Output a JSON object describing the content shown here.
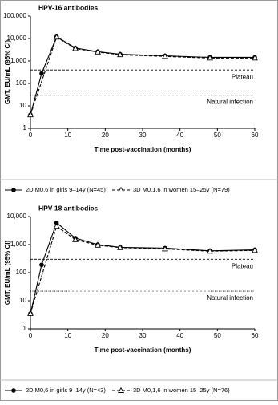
{
  "chart_data": [
    {
      "type": "line",
      "title": "HPV-16 antibodies",
      "x_label": "Time post-vaccination (months)",
      "y_label": "GMT, EU/mL (95% CI)",
      "log_scale": true,
      "xlim": [
        0,
        60
      ],
      "xticks": [
        0,
        10,
        20,
        30,
        40,
        50,
        60
      ],
      "ylim": [
        1,
        100000
      ],
      "yticks": [
        1,
        10,
        100,
        {
          "value": 1000,
          "label": "1,000"
        },
        {
          "value": 10000,
          "label": "10,000"
        },
        {
          "value": 100000,
          "label": "100,000"
        }
      ],
      "series": [
        {
          "name": "2D M0,6 in girls 9–14y (N=45)",
          "color": "#000000",
          "marker": "circle",
          "line": "solid",
          "x": [
            0,
            3,
            7,
            12,
            18,
            24,
            36,
            48,
            60
          ],
          "values": [
            4,
            280,
            12000,
            3800,
            2600,
            2000,
            1700,
            1450,
            1450
          ]
        },
        {
          "name": "3D M0,1,6 in women 15–25y (N=79)",
          "color": "#000000",
          "marker": "triangle",
          "line": "dashed",
          "x": [
            0,
            7,
            12,
            18,
            24,
            36,
            48,
            60
          ],
          "values": [
            4,
            11500,
            3600,
            2500,
            1900,
            1600,
            1350,
            1350
          ]
        }
      ],
      "reference_lines": [
        {
          "label": "Plateau",
          "value": 400,
          "style": "dashed"
        },
        {
          "label": "Natural infection",
          "value": 30,
          "style": "dotted"
        }
      ]
    },
    {
      "type": "line",
      "title": "HPV-18 antibodies",
      "x_label": "Time post-vaccination (months)",
      "y_label": "GMT, EU/mL (95% CI)",
      "log_scale": true,
      "xlim": [
        0,
        60
      ],
      "xticks": [
        0,
        10,
        20,
        30,
        40,
        50,
        60
      ],
      "ylim": [
        1,
        10000
      ],
      "yticks": [
        1,
        10,
        100,
        {
          "value": 1000,
          "label": "1,000"
        },
        {
          "value": 10000,
          "label": "10,000"
        }
      ],
      "series": [
        {
          "name": "2D M0,6 in girls 9–14y (N=43)",
          "color": "#000000",
          "marker": "circle",
          "line": "solid",
          "x": [
            0,
            3,
            7,
            12,
            18,
            24,
            36,
            48,
            60
          ],
          "values": [
            3.5,
            190,
            6000,
            1700,
            1000,
            800,
            750,
            600,
            650
          ]
        },
        {
          "name": "3D M0,1,6 in women 15–25y (N=76)",
          "color": "#000000",
          "marker": "triangle",
          "line": "dashed",
          "x": [
            0,
            7,
            12,
            18,
            24,
            36,
            48,
            60
          ],
          "values": [
            3.5,
            4500,
            1500,
            950,
            780,
            700,
            580,
            620
          ]
        }
      ],
      "reference_lines": [
        {
          "label": "Plateau",
          "value": 300,
          "style": "dashed"
        },
        {
          "label": "Natural infection",
          "value": 22,
          "style": "dotted"
        }
      ]
    }
  ]
}
